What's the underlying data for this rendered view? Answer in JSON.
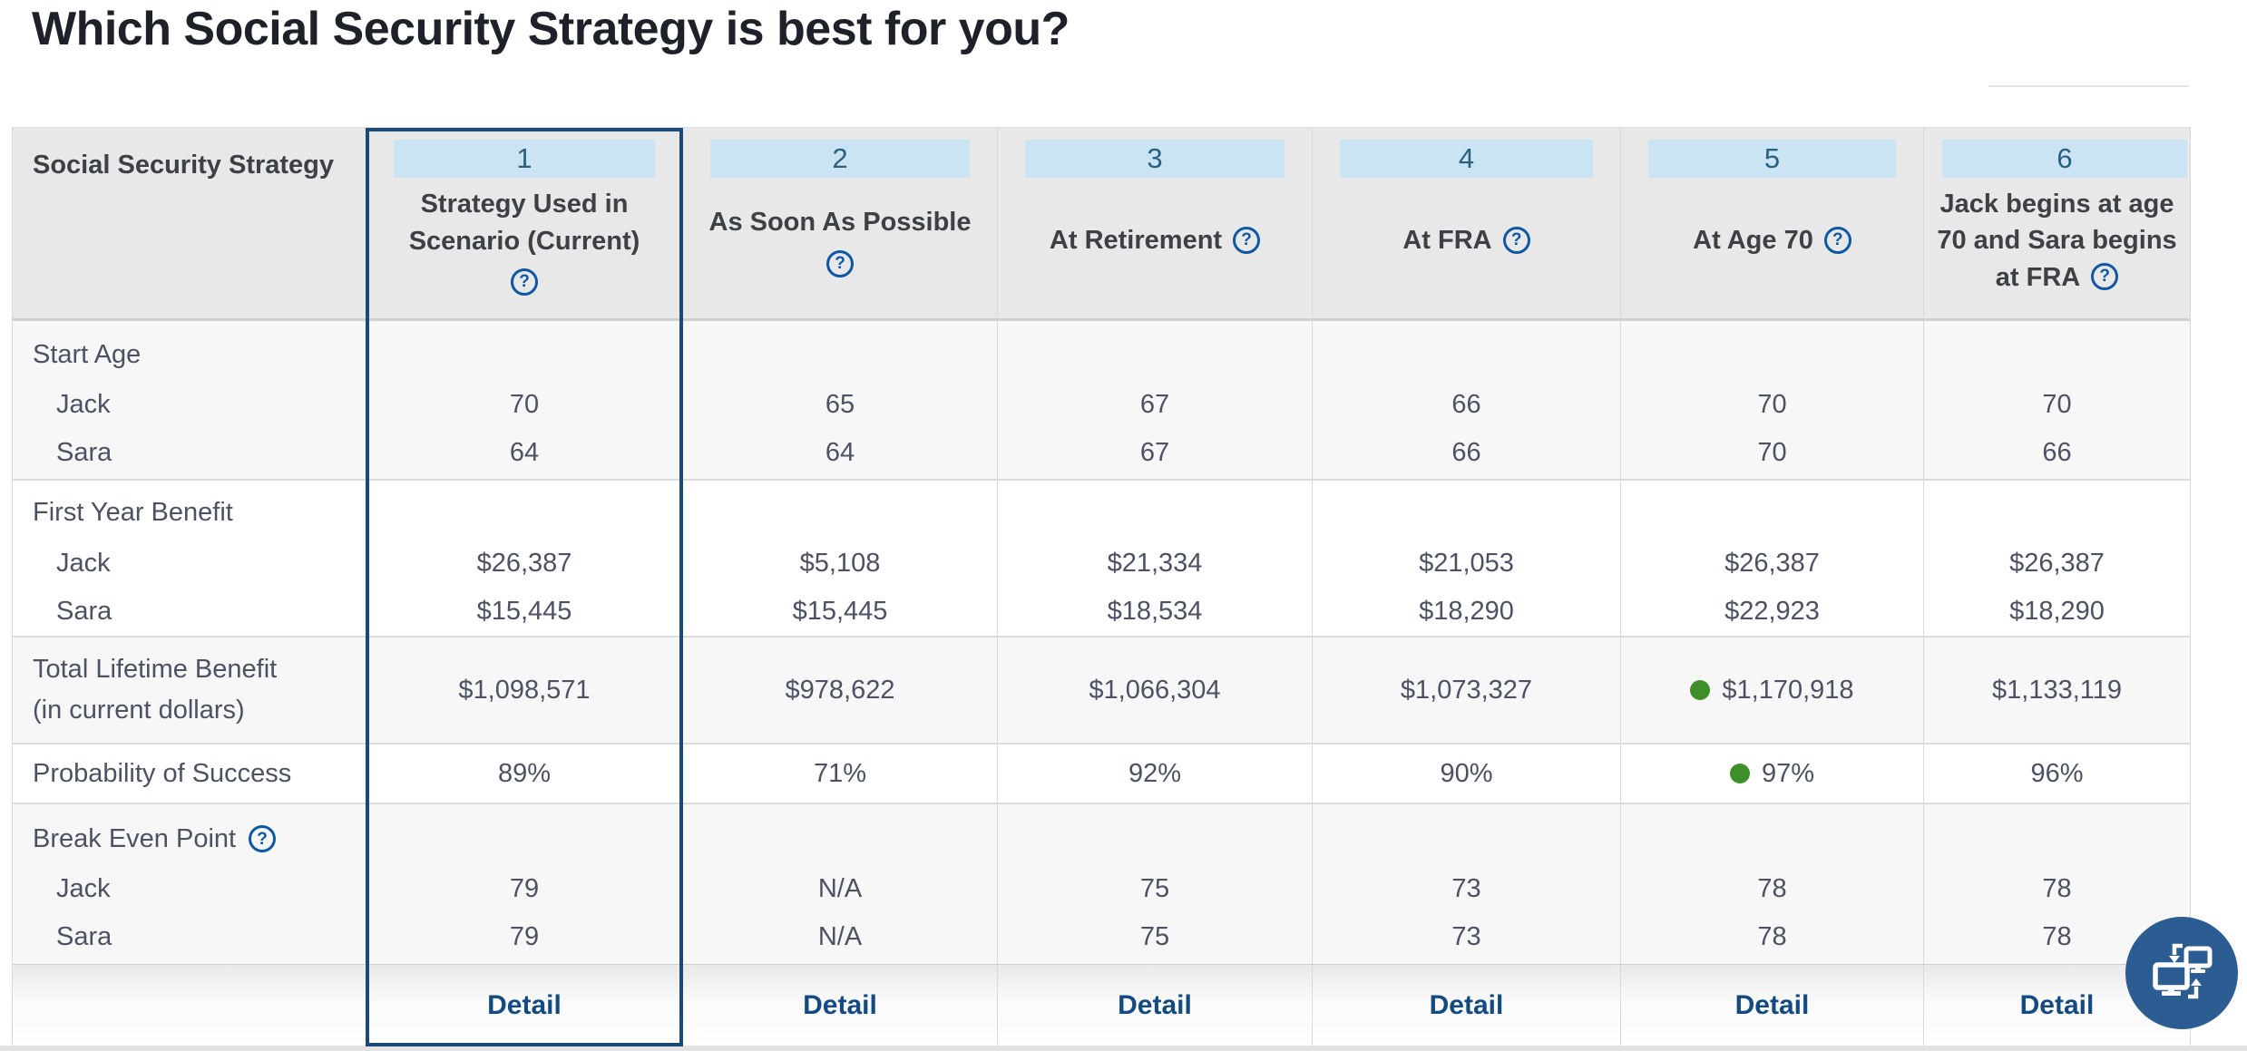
{
  "page": {
    "title": "Which Social Security Strategy is best for you?"
  },
  "colors": {
    "accent_navy": "#1A4A77",
    "link_navy": "#134A81",
    "strip_blue": "#CBE4F4",
    "number_blue": "#27617F",
    "good_green": "#3E8E2A",
    "header_gray": "#E8E8E8",
    "shaded_row": "#F7F7F8"
  },
  "icons": {
    "help_glyph": "?",
    "floating_button": "dual-monitor-sync-icon"
  },
  "table": {
    "corner_label": "Social Security Strategy",
    "columns": [
      {
        "number": "1",
        "title": "Strategy Used in Scenario (Current)",
        "help": "below",
        "selected": true
      },
      {
        "number": "2",
        "title": "As Soon As Possible",
        "help": "below",
        "selected": false
      },
      {
        "number": "3",
        "title": "At Retirement",
        "help": "inline",
        "selected": false
      },
      {
        "number": "4",
        "title": "At FRA",
        "help": "inline",
        "selected": false
      },
      {
        "number": "5",
        "title": "At Age 70",
        "help": "inline",
        "selected": false
      },
      {
        "number": "6",
        "title": "Jack begins at age 70 and Sara begins at FRA",
        "help": "inline",
        "selected": false
      }
    ],
    "row_groups": [
      {
        "type": "multi",
        "label": "Start Age",
        "label_help": false,
        "shaded": true,
        "lines": [
          {
            "label": "Jack",
            "values": [
              "70",
              "65",
              "67",
              "66",
              "70",
              "70"
            ]
          },
          {
            "label": "Sara",
            "values": [
              "64",
              "64",
              "67",
              "66",
              "70",
              "66"
            ]
          }
        ]
      },
      {
        "type": "multi",
        "label": "First Year Benefit",
        "label_help": false,
        "shaded": false,
        "lines": [
          {
            "label": "Jack",
            "values": [
              "$26,387",
              "$5,108",
              "$21,334",
              "$21,053",
              "$26,387",
              "$26,387"
            ]
          },
          {
            "label": "Sara",
            "values": [
              "$15,445",
              "$15,445",
              "$18,534",
              "$18,290",
              "$22,923",
              "$18,290"
            ]
          }
        ]
      },
      {
        "type": "single",
        "label": "Total Lifetime Benefit",
        "sublabel": "(in current dollars)",
        "shaded": true,
        "values": [
          "$1,098,571",
          "$978,622",
          "$1,066,304",
          "$1,073,327",
          "$1,170,918",
          "$1,133,119"
        ],
        "highlight_index": 4
      },
      {
        "type": "single",
        "label": "Probability of Success",
        "sublabel": "",
        "shaded": false,
        "values": [
          "89%",
          "71%",
          "92%",
          "90%",
          "97%",
          "96%"
        ],
        "highlight_index": 4
      },
      {
        "type": "multi",
        "label": "Break Even Point",
        "label_help": true,
        "shaded": true,
        "lines": [
          {
            "label": "Jack",
            "values": [
              "79",
              "N/A",
              "75",
              "73",
              "78",
              "78"
            ]
          },
          {
            "label": "Sara",
            "values": [
              "79",
              "N/A",
              "75",
              "73",
              "78",
              "78"
            ]
          }
        ]
      },
      {
        "type": "detail",
        "link_label": "Detail"
      }
    ]
  }
}
